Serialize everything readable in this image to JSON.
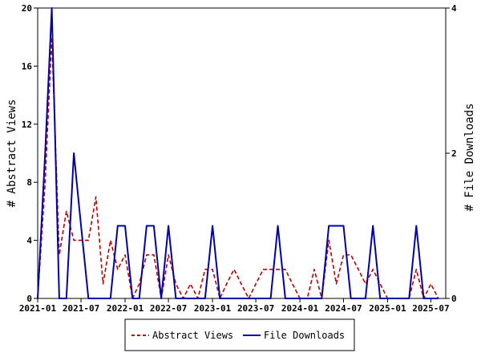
{
  "chart_data": {
    "type": "line",
    "title": "",
    "ylabel_left": "# Abstract Views",
    "ylabel_right": "# File Downloads",
    "xlabel": "",
    "x_tick_labels": [
      "2021-01",
      "2021-07",
      "2022-01",
      "2022-07",
      "2023-01",
      "2023-07",
      "2024-01",
      "2024-07",
      "2025-01",
      "2025-07"
    ],
    "y_left_ticks": [
      "0",
      "4",
      "8",
      "12",
      "16",
      "20"
    ],
    "y_right_ticks": [
      "0",
      "2",
      "4"
    ],
    "y_left_range": [
      0,
      20
    ],
    "y_right_range": [
      0,
      4
    ],
    "x_range": [
      "2021-01-01",
      "2025-09-01"
    ],
    "grid": false,
    "legend_position": "bottom-center",
    "series": [
      {
        "name": "Abstract Views",
        "axis": "left",
        "color": "#c00000",
        "style": "dashed",
        "points": [
          [
            "2021-01-01",
            0
          ],
          [
            "2021-02-01",
            8
          ],
          [
            "2021-03-01",
            18
          ],
          [
            "2021-04-01",
            3
          ],
          [
            "2021-05-01",
            6
          ],
          [
            "2021-06-01",
            4
          ],
          [
            "2021-07-01",
            4
          ],
          [
            "2021-08-01",
            4
          ],
          [
            "2021-09-01",
            7
          ],
          [
            "2021-10-01",
            1
          ],
          [
            "2021-11-01",
            4
          ],
          [
            "2021-12-01",
            2
          ],
          [
            "2022-01-01",
            3
          ],
          [
            "2022-02-01",
            0
          ],
          [
            "2022-03-01",
            1
          ],
          [
            "2022-04-01",
            3
          ],
          [
            "2022-05-01",
            3
          ],
          [
            "2022-06-01",
            0
          ],
          [
            "2022-07-01",
            3
          ],
          [
            "2022-08-01",
            1
          ],
          [
            "2022-09-01",
            0
          ],
          [
            "2022-10-01",
            1
          ],
          [
            "2022-11-01",
            0
          ],
          [
            "2022-12-01",
            2
          ],
          [
            "2023-01-01",
            2
          ],
          [
            "2023-02-01",
            0
          ],
          [
            "2023-03-01",
            1
          ],
          [
            "2023-04-01",
            2
          ],
          [
            "2023-05-01",
            1
          ],
          [
            "2023-06-01",
            0
          ],
          [
            "2023-07-01",
            1
          ],
          [
            "2023-08-01",
            2
          ],
          [
            "2023-09-01",
            2
          ],
          [
            "2023-10-01",
            2
          ],
          [
            "2023-11-01",
            2
          ],
          [
            "2023-12-01",
            1
          ],
          [
            "2024-01-01",
            0
          ],
          [
            "2024-02-01",
            0
          ],
          [
            "2024-03-01",
            2
          ],
          [
            "2024-04-01",
            0
          ],
          [
            "2024-05-01",
            4
          ],
          [
            "2024-06-01",
            1
          ],
          [
            "2024-07-01",
            3
          ],
          [
            "2024-08-01",
            3
          ],
          [
            "2024-09-01",
            2
          ],
          [
            "2024-10-01",
            1
          ],
          [
            "2024-11-01",
            2
          ],
          [
            "2024-12-01",
            1
          ],
          [
            "2025-01-01",
            0
          ],
          [
            "2025-02-01",
            0
          ],
          [
            "2025-03-01",
            0
          ],
          [
            "2025-04-01",
            0
          ],
          [
            "2025-05-01",
            2
          ],
          [
            "2025-06-01",
            0
          ],
          [
            "2025-07-01",
            1
          ],
          [
            "2025-08-01",
            0
          ]
        ]
      },
      {
        "name": "File Downloads",
        "axis": "right",
        "color": "#0000b0",
        "style": "solid",
        "points": [
          [
            "2021-01-01",
            0
          ],
          [
            "2021-02-01",
            2
          ],
          [
            "2021-03-01",
            4
          ],
          [
            "2021-04-01",
            0
          ],
          [
            "2021-05-01",
            0
          ],
          [
            "2021-06-01",
            2
          ],
          [
            "2021-07-01",
            1
          ],
          [
            "2021-08-01",
            0
          ],
          [
            "2021-09-01",
            0
          ],
          [
            "2021-10-01",
            0
          ],
          [
            "2021-11-01",
            0
          ],
          [
            "2021-12-01",
            1
          ],
          [
            "2022-01-01",
            1
          ],
          [
            "2022-02-01",
            0
          ],
          [
            "2022-03-01",
            0
          ],
          [
            "2022-04-01",
            1
          ],
          [
            "2022-05-01",
            1
          ],
          [
            "2022-06-01",
            0
          ],
          [
            "2022-07-01",
            1
          ],
          [
            "2022-08-01",
            0
          ],
          [
            "2022-09-01",
            0
          ],
          [
            "2022-10-01",
            0
          ],
          [
            "2022-11-01",
            0
          ],
          [
            "2022-12-01",
            0
          ],
          [
            "2023-01-01",
            1
          ],
          [
            "2023-02-01",
            0
          ],
          [
            "2023-03-01",
            0
          ],
          [
            "2023-04-01",
            0
          ],
          [
            "2023-05-01",
            0
          ],
          [
            "2023-06-01",
            0
          ],
          [
            "2023-07-01",
            0
          ],
          [
            "2023-08-01",
            0
          ],
          [
            "2023-09-01",
            0
          ],
          [
            "2023-10-01",
            1
          ],
          [
            "2023-11-01",
            0
          ],
          [
            "2023-12-01",
            0
          ],
          [
            "2024-01-01",
            0
          ],
          [
            "2024-02-01",
            0
          ],
          [
            "2024-03-01",
            0
          ],
          [
            "2024-04-01",
            0
          ],
          [
            "2024-05-01",
            1
          ],
          [
            "2024-06-01",
            1
          ],
          [
            "2024-07-01",
            1
          ],
          [
            "2024-08-01",
            0
          ],
          [
            "2024-09-01",
            0
          ],
          [
            "2024-10-01",
            0
          ],
          [
            "2024-11-01",
            1
          ],
          [
            "2024-12-01",
            0
          ],
          [
            "2025-01-01",
            0
          ],
          [
            "2025-02-01",
            0
          ],
          [
            "2025-03-01",
            0
          ],
          [
            "2025-04-01",
            0
          ],
          [
            "2025-05-01",
            1
          ],
          [
            "2025-06-01",
            0
          ],
          [
            "2025-07-01",
            0
          ],
          [
            "2025-08-01",
            0
          ]
        ]
      }
    ]
  }
}
